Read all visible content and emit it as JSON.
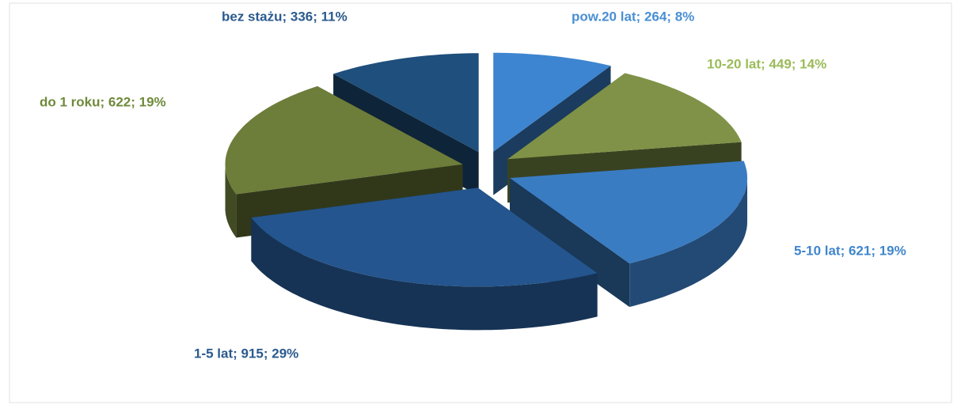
{
  "chart_data": {
    "type": "pie3d",
    "values": [
      264,
      449,
      621,
      915,
      622,
      336
    ],
    "value_labels": [
      "pow.20 lat; 264; 8%",
      "10-20 lat; 449; 14%",
      "5-10 lat; 621; 19%",
      "1-5 lat; 915; 29%",
      "do 1 roku; 622; 19%",
      "bez stażu; 336; 11%"
    ],
    "colors": [
      "#3d85d0",
      "#7f9247",
      "#3a7cc2",
      "#24558e",
      "#6d7d3a",
      "#1f4f7c"
    ],
    "label_colors": [
      "#4a8fd4",
      "#9bbb59",
      "#3f86cc",
      "#2a5a8e",
      "#6f8a3a",
      "#2a5a8e"
    ]
  }
}
